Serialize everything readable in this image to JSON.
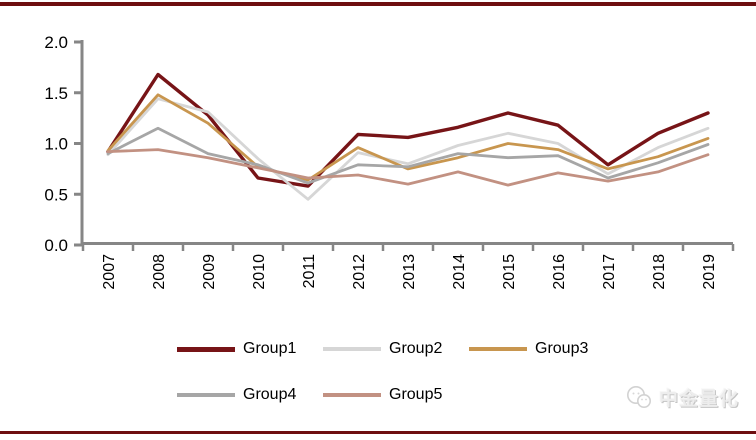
{
  "chart_data": {
    "type": "line",
    "title": "",
    "xlabel": "",
    "ylabel": "",
    "categories": [
      "2007",
      "2008",
      "2009",
      "2010",
      "2011",
      "2012",
      "2013",
      "2014",
      "2015",
      "2016",
      "2017",
      "2018",
      "2019"
    ],
    "ylim": [
      0.0,
      2.0
    ],
    "ytick_labels": [
      "0.0",
      "0.5",
      "1.0",
      "1.5",
      "2.0"
    ],
    "grid": false,
    "legend_position": "bottom",
    "series": [
      {
        "name": "Group1",
        "color": "#771417",
        "values": [
          0.92,
          1.68,
          1.28,
          0.66,
          0.58,
          1.09,
          1.06,
          1.16,
          1.3,
          1.18,
          0.79,
          1.1,
          1.3
        ]
      },
      {
        "name": "Group2",
        "color": "#D6D6D6",
        "values": [
          0.89,
          1.44,
          1.31,
          0.85,
          0.45,
          0.91,
          0.8,
          0.98,
          1.1,
          1.0,
          0.7,
          0.96,
          1.15
        ]
      },
      {
        "name": "Group3",
        "color": "#C8964F",
        "values": [
          0.93,
          1.48,
          1.2,
          0.77,
          0.64,
          0.96,
          0.75,
          0.86,
          1.0,
          0.94,
          0.75,
          0.87,
          1.05
        ]
      },
      {
        "name": "Group4",
        "color": "#A6A6A6",
        "values": [
          0.9,
          1.15,
          0.9,
          0.79,
          0.61,
          0.79,
          0.77,
          0.9,
          0.86,
          0.88,
          0.66,
          0.81,
          0.99
        ]
      },
      {
        "name": "Group5",
        "color": "#C29182",
        "values": [
          0.92,
          0.94,
          0.86,
          0.76,
          0.66,
          0.69,
          0.6,
          0.72,
          0.59,
          0.71,
          0.63,
          0.72,
          0.89
        ]
      }
    ]
  },
  "watermark": {
    "text": "中金量化",
    "icon": "wechat-icon"
  },
  "accents": {
    "border_color": "#6E0E10",
    "axis_color": "#868686",
    "tick_label_color": "#000000"
  }
}
